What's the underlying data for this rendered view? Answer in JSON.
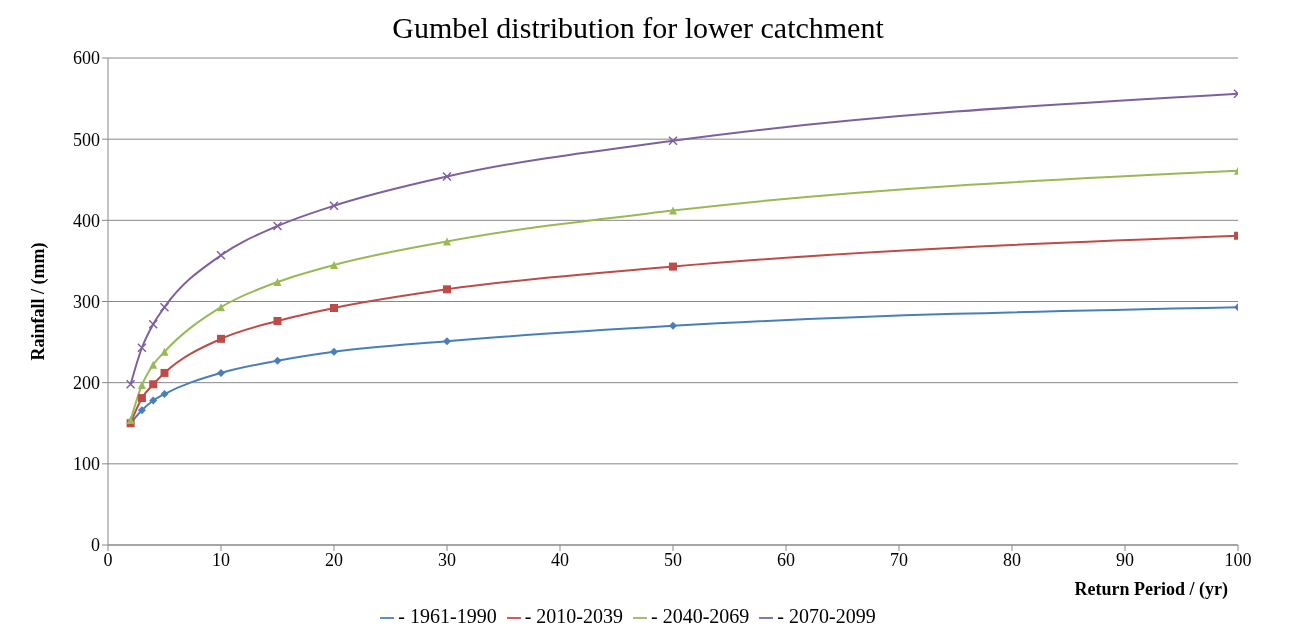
{
  "chart_data": {
    "type": "line",
    "title": "Gumbel distribution for lower catchment",
    "xlabel": "Return Period / (yr)",
    "ylabel": "Rainfall / (mm)",
    "x": [
      2,
      3,
      4,
      5,
      10,
      15,
      20,
      30,
      50,
      100
    ],
    "series": [
      {
        "name": "- 1961-1990",
        "color": "#4a7ebb",
        "marker": "diamond",
        "values": [
          150,
          166,
          178,
          186,
          212,
          227,
          238,
          251,
          270,
          293
        ]
      },
      {
        "name": "- 2010-2039",
        "color": "#be4b48",
        "marker": "square",
        "values": [
          150,
          181,
          198,
          212,
          254,
          276,
          292,
          315,
          343,
          381
        ]
      },
      {
        "name": "- 2040-2069",
        "color": "#98b954",
        "marker": "triangle",
        "values": [
          154,
          197,
          222,
          238,
          293,
          324,
          345,
          374,
          412,
          461
        ]
      },
      {
        "name": "- 2070-2099",
        "color": "#7d60a0",
        "marker": "cross",
        "values": [
          198,
          243,
          272,
          293,
          357,
          393,
          418,
          454,
          498,
          556
        ]
      }
    ],
    "xlim": [
      0,
      100
    ],
    "xticks": [
      0,
      10,
      20,
      30,
      40,
      50,
      60,
      70,
      80,
      90,
      100
    ],
    "ylim": [
      0,
      600
    ],
    "yticks": [
      0,
      100,
      200,
      300,
      400,
      500,
      600
    ],
    "grid": "y",
    "legend": "bottom"
  }
}
